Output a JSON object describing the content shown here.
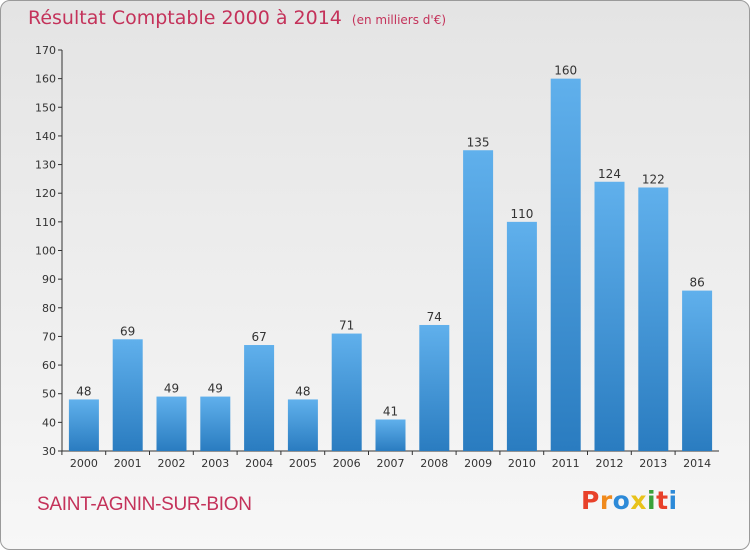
{
  "header": {
    "title": "Résultat Comptable 2000 à 2014",
    "subtitle": "(en milliers d'€)"
  },
  "footer": {
    "commune": "SAINT-AGNIN-SUR-BION",
    "logo_text": "Proxiti",
    "logo_colors": [
      "#e8412a",
      "#f08a1c",
      "#2d8ad8",
      "#e8c21a",
      "#3aa13a",
      "#e8412a",
      "#2d8ad8"
    ]
  },
  "colors": {
    "bar_light": "#60b0ec",
    "bar_dark": "#2a7cc0",
    "title": "#c4325a"
  },
  "chart_data": {
    "type": "bar",
    "categories": [
      "2000",
      "2001",
      "2002",
      "2003",
      "2004",
      "2005",
      "2006",
      "2007",
      "2008",
      "2009",
      "2010",
      "2011",
      "2012",
      "2013",
      "2014"
    ],
    "values": [
      48,
      69,
      49,
      49,
      67,
      48,
      71,
      41,
      74,
      135,
      110,
      160,
      124,
      122,
      86
    ],
    "ylim": [
      30,
      170
    ],
    "yticks": [
      30,
      40,
      50,
      60,
      70,
      80,
      90,
      100,
      110,
      120,
      130,
      140,
      150,
      160,
      170
    ],
    "grid": false,
    "data_labels": true
  }
}
